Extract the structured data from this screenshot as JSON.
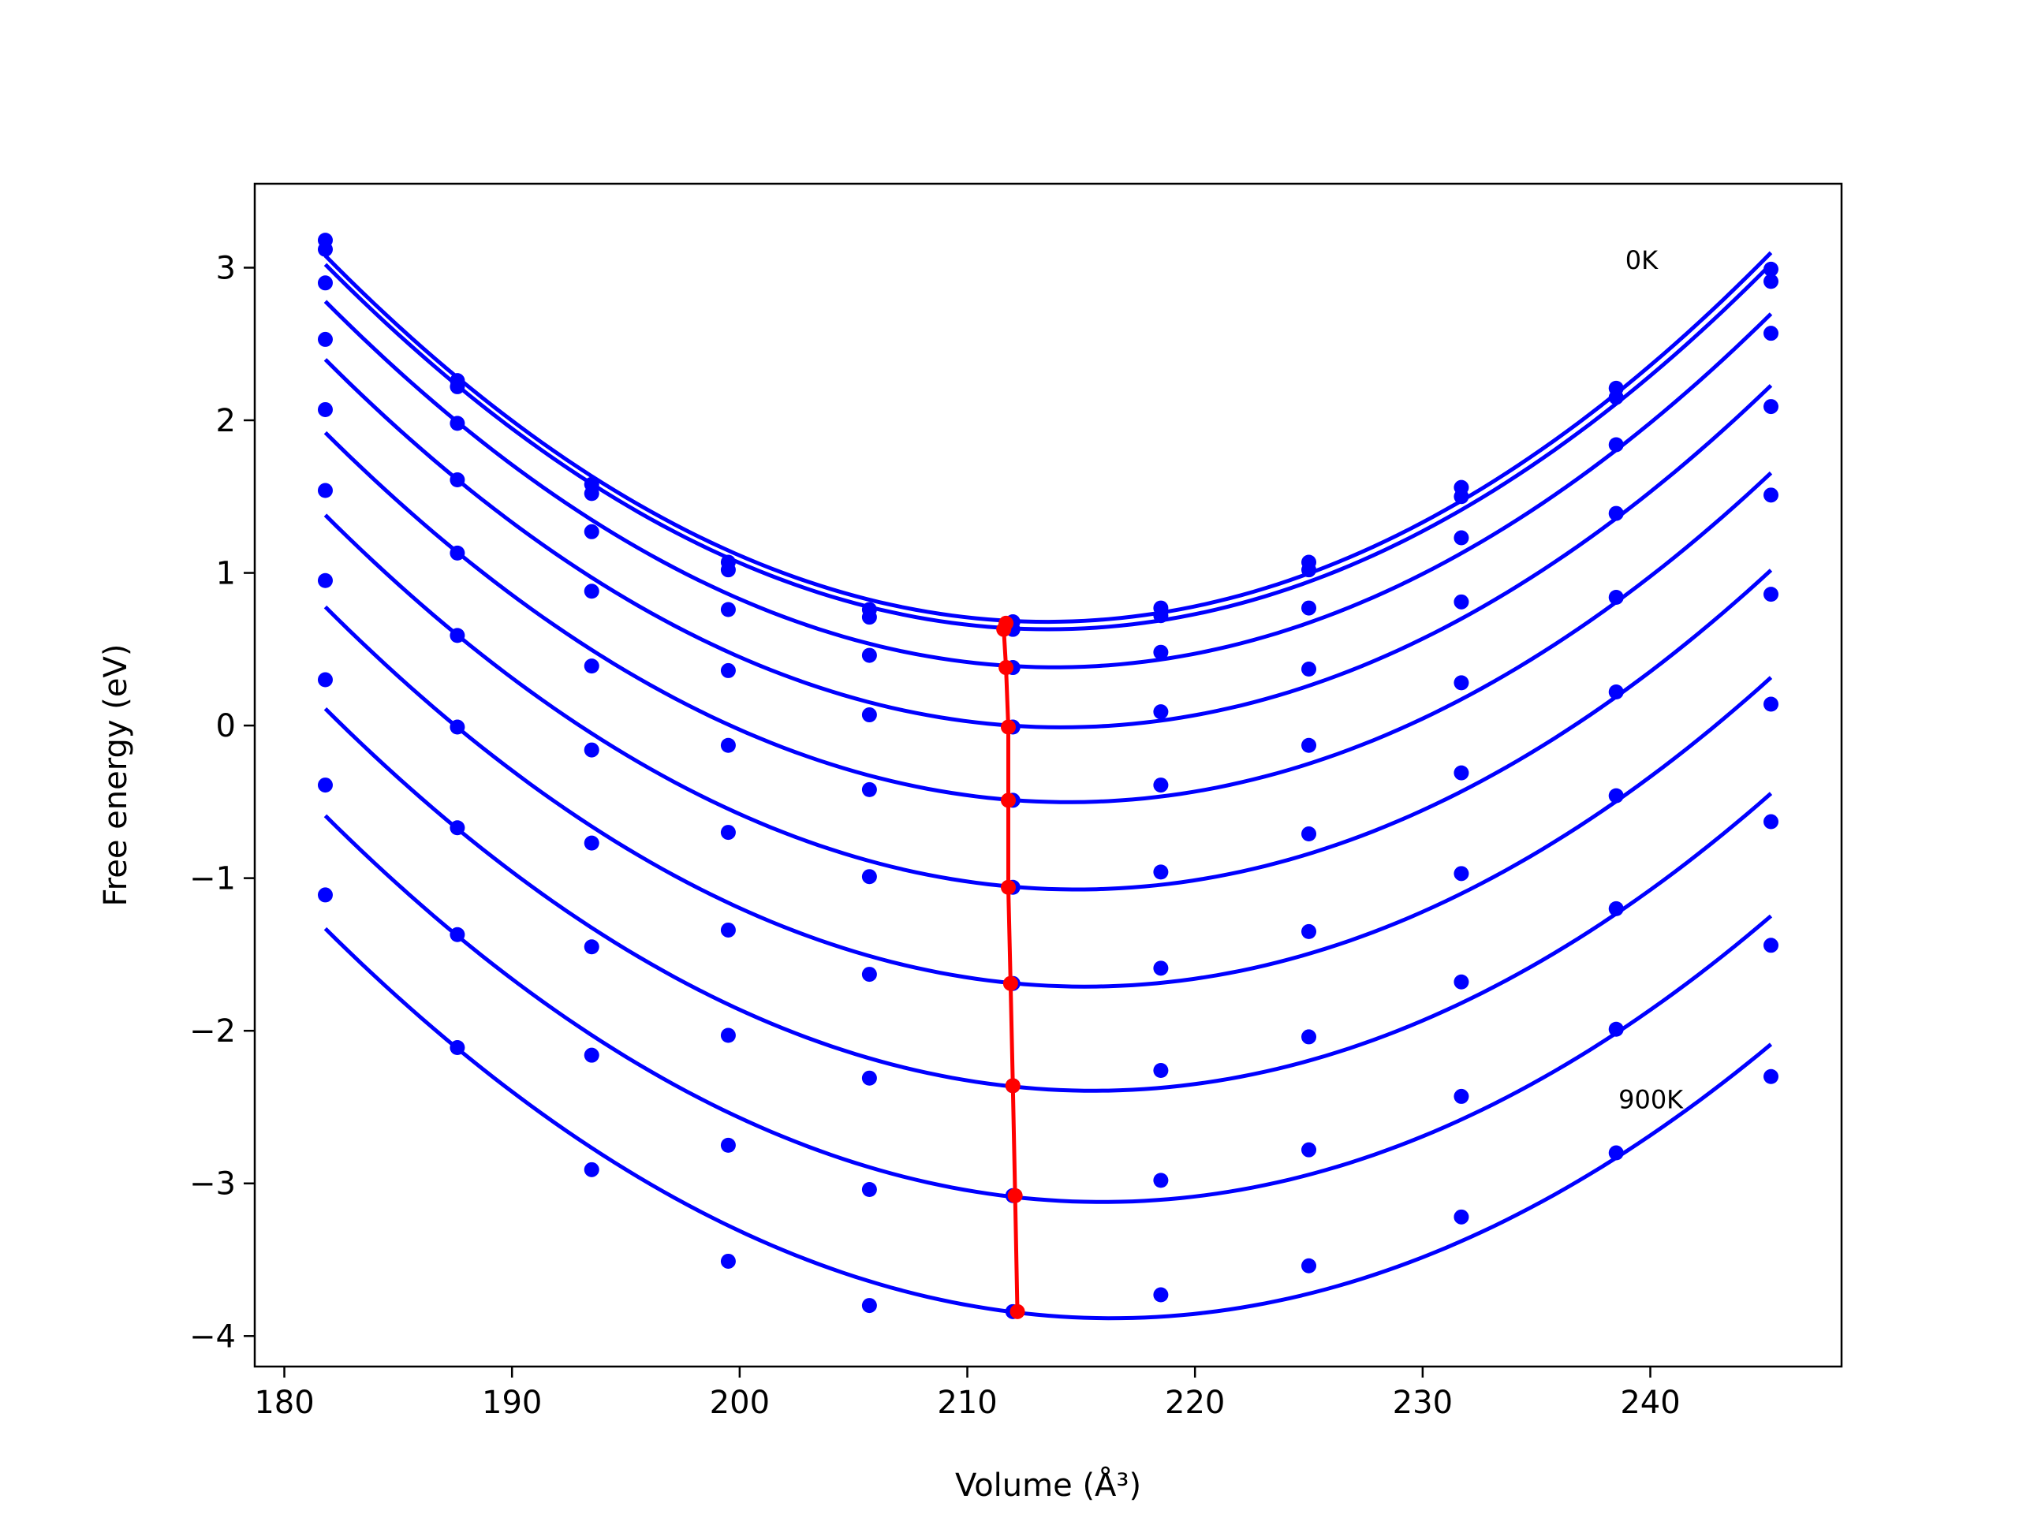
{
  "chart_data": {
    "type": "line",
    "title": "",
    "xlabel": "Volume (Å³)",
    "ylabel": "Free energy (eV)",
    "xlim": [
      178.7,
      248.4
    ],
    "ylim": [
      -4.2,
      3.55
    ],
    "xticks": [
      "180",
      "190",
      "200",
      "210",
      "220",
      "230",
      "240"
    ],
    "yticks": [
      "−4",
      "−3",
      "−2",
      "−1",
      "0",
      "1",
      "2",
      "3"
    ],
    "grid": false,
    "colors": {
      "curves": "#0000ff",
      "minimum_line": "#ff0000"
    },
    "annotations": [
      {
        "text": "0K",
        "x": 238.9,
        "y": 3.05
      },
      {
        "text": "900K",
        "x": 238.6,
        "y": -2.45
      }
    ],
    "x": [
      181.8,
      187.6,
      193.5,
      199.5,
      205.7,
      212.0,
      218.5,
      225.0,
      231.7,
      238.5,
      245.3
    ],
    "series": [
      {
        "points": [
          3.18,
          2.26,
          1.58,
          1.07,
          0.76,
          0.68,
          0.77,
          1.07,
          1.56,
          2.21,
          2.99
        ]
      },
      {
        "points": [
          3.12,
          2.22,
          1.52,
          1.02,
          0.71,
          0.63,
          0.72,
          1.02,
          1.5,
          2.15,
          2.91
        ]
      },
      {
        "points": [
          2.9,
          1.98,
          1.27,
          0.76,
          0.46,
          0.38,
          0.48,
          0.77,
          1.23,
          1.84,
          2.57
        ]
      },
      {
        "points": [
          2.53,
          1.61,
          0.88,
          0.36,
          0.07,
          -0.01,
          0.09,
          0.37,
          0.81,
          1.39,
          2.09
        ]
      },
      {
        "points": [
          2.07,
          1.13,
          0.39,
          -0.13,
          -0.42,
          -0.49,
          -0.39,
          -0.13,
          0.28,
          0.84,
          1.51
        ]
      },
      {
        "points": [
          1.54,
          0.59,
          -0.16,
          -0.7,
          -0.99,
          -1.06,
          -0.96,
          -0.71,
          -0.31,
          0.22,
          0.86
        ]
      },
      {
        "points": [
          0.95,
          -0.01,
          -0.77,
          -1.34,
          -1.63,
          -1.69,
          -1.59,
          -1.35,
          -0.97,
          -0.46,
          0.14
        ]
      },
      {
        "points": [
          0.3,
          -0.67,
          -1.45,
          -2.03,
          -2.31,
          -2.36,
          -2.26,
          -2.04,
          -1.68,
          -1.2,
          -0.63
        ]
      },
      {
        "points": [
          -0.39,
          -1.37,
          -2.16,
          -2.75,
          -3.04,
          -3.08,
          -2.98,
          -2.78,
          -2.43,
          -1.99,
          -1.44
        ]
      },
      {
        "points": [
          -1.11,
          -2.11,
          -2.91,
          -3.51,
          -3.8,
          -3.84,
          -3.73,
          -3.54,
          -3.22,
          -2.8,
          -2.3
        ]
      }
    ],
    "minima": {
      "x": [
        211.7,
        211.6,
        211.7,
        211.8,
        211.8,
        211.8,
        211.9,
        212.0,
        212.1,
        212.2
      ],
      "y": [
        0.67,
        0.63,
        0.38,
        -0.01,
        -0.49,
        -1.06,
        -1.69,
        -2.36,
        -3.08,
        -3.84
      ]
    }
  }
}
